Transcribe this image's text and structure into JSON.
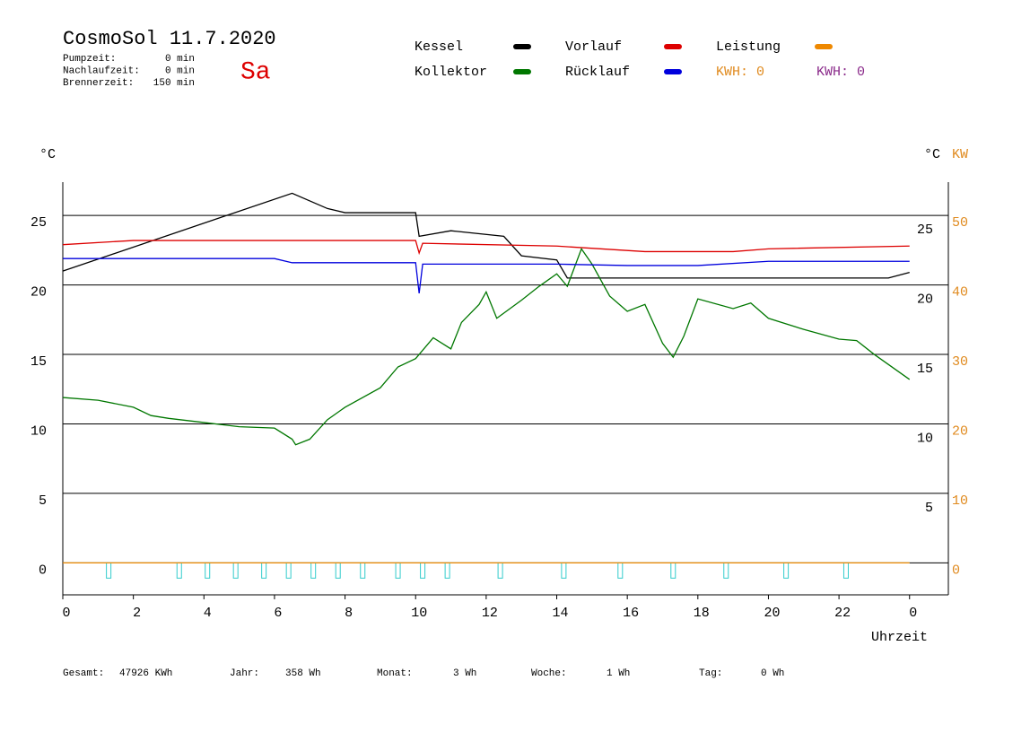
{
  "chart_data": {
    "type": "line",
    "title": "CosmoSol 11.7.2020",
    "day": "Sa",
    "info": [
      {
        "label": "Pumpzeit:",
        "value": "0 min"
      },
      {
        "label": "Nachlaufzeit:",
        "value": "0 min"
      },
      {
        "label": "Brennerzeit:",
        "value": "150 min"
      }
    ],
    "y_label": "°C",
    "y_right_label": "°C",
    "y2_label": "KW",
    "x_label": "Uhrzeit",
    "kwh_labels": [
      {
        "text": "KWH: 0",
        "color": "#e08a1e"
      },
      {
        "text": "KWH: 0",
        "color": "#8a2a8a"
      }
    ],
    "footer": [
      {
        "label": "Gesamt:",
        "value": "47926 KWh"
      },
      {
        "label": "Jahr:",
        "value": "358 Wh"
      },
      {
        "label": "Monat:",
        "value": "3 Wh"
      },
      {
        "label": "Woche:",
        "value": "1 Wh"
      },
      {
        "label": "Tag:",
        "value": "0 Wh"
      }
    ],
    "xlim": [
      0,
      25.1
    ],
    "xticks": [
      0,
      2,
      4,
      6,
      8,
      10,
      12,
      14,
      16,
      18,
      20,
      22,
      {
        "value": 24,
        "label": "0"
      }
    ],
    "ylim": [
      -2.3,
      27.4
    ],
    "yticks": [
      0,
      5,
      10,
      15,
      20,
      25
    ],
    "yticks_right": [
      5,
      10,
      15,
      20,
      25
    ],
    "y2lim": [
      -4.6,
      54.8
    ],
    "y2ticks": [
      0,
      10,
      20,
      30,
      40,
      50
    ],
    "grid": true,
    "pump_markers": [
      1.3,
      3.3,
      4.1,
      4.9,
      5.7,
      6.4,
      7.1,
      7.8,
      8.5,
      9.5,
      10.2,
      10.9,
      12.4,
      14.2,
      15.8,
      17.3,
      18.8,
      20.5,
      22.2
    ],
    "pump_color": "#33cccc",
    "series": [
      {
        "name": "Kessel",
        "color": "#000000",
        "x": [
          0,
          6.5,
          7.5,
          8,
          10,
          10.1,
          11,
          12.5,
          13,
          14,
          14.3,
          23.4,
          24
        ],
        "values": [
          21.0,
          26.6,
          25.5,
          25.2,
          25.2,
          23.5,
          23.9,
          23.5,
          22.1,
          21.8,
          20.5,
          20.5,
          20.9
        ]
      },
      {
        "name": "Vorlauf",
        "color": "#dd0000",
        "x": [
          0,
          2,
          10,
          10.1,
          10.2,
          14,
          16.5,
          19,
          20,
          24
        ],
        "values": [
          22.9,
          23.2,
          23.2,
          22.3,
          23.0,
          22.8,
          22.4,
          22.4,
          22.6,
          22.8
        ]
      },
      {
        "name": "Leistung",
        "color": "#ee8800",
        "axis": "y2",
        "x": [
          0,
          24
        ],
        "values": [
          0,
          0
        ]
      },
      {
        "name": "Kollektor",
        "color": "#007700",
        "x": [
          0,
          1,
          2,
          2.5,
          3,
          4,
          5,
          6,
          6.5,
          6.6,
          7,
          7.5,
          8,
          9,
          9.5,
          10,
          10.5,
          11,
          11.3,
          11.8,
          12,
          12.3,
          13,
          13.5,
          14,
          14.3,
          14.7,
          15,
          15.5,
          16,
          16.5,
          17,
          17.3,
          17.6,
          18,
          19,
          19.5,
          20,
          21,
          22,
          22.5,
          23,
          24
        ],
        "values": [
          11.9,
          11.7,
          11.2,
          10.6,
          10.4,
          10.1,
          9.8,
          9.7,
          8.9,
          8.5,
          8.9,
          10.3,
          11.2,
          12.6,
          14.1,
          14.7,
          16.2,
          15.4,
          17.3,
          18.6,
          19.5,
          17.6,
          18.9,
          19.9,
          20.8,
          19.9,
          22.6,
          21.5,
          19.2,
          18.1,
          18.6,
          15.8,
          14.8,
          16.3,
          19.0,
          18.3,
          18.7,
          17.6,
          16.8,
          16.1,
          16.0,
          15.0,
          13.2
        ]
      },
      {
        "name": "Rücklauf",
        "color": "#0000dd",
        "x": [
          0,
          6,
          6.5,
          10,
          10.1,
          10.2,
          10.5,
          14,
          16,
          18,
          20,
          24
        ],
        "values": [
          21.9,
          21.9,
          21.6,
          21.6,
          19.4,
          21.5,
          21.5,
          21.5,
          21.4,
          21.4,
          21.7,
          21.7
        ]
      }
    ]
  }
}
